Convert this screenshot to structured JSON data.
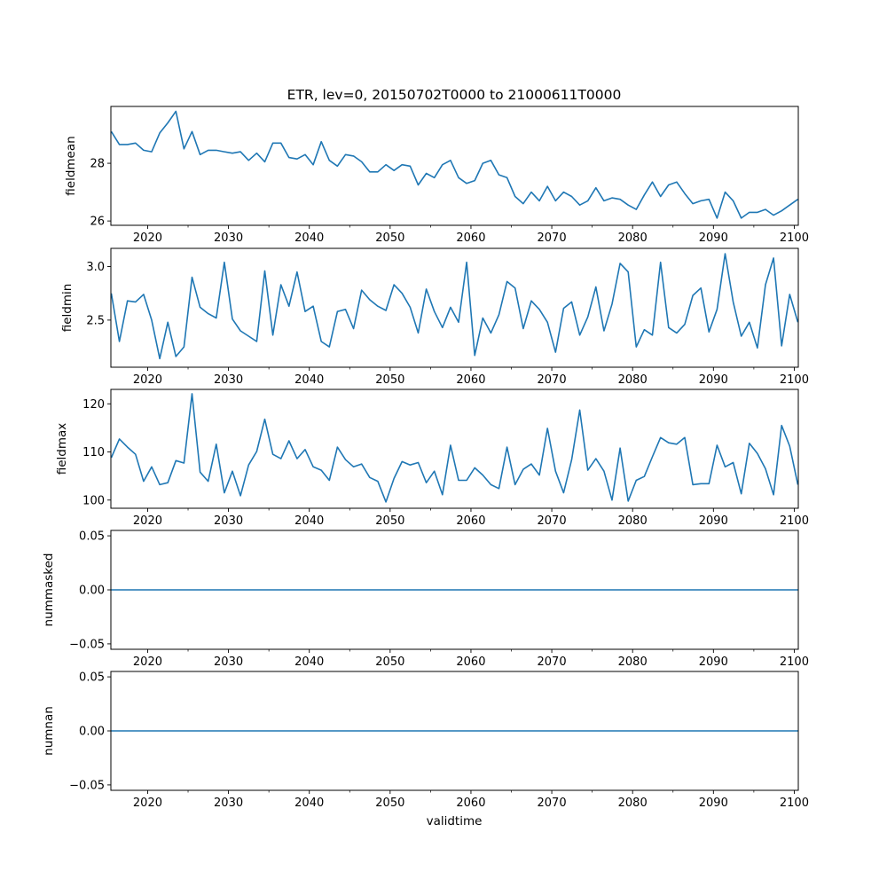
{
  "chart_data": {
    "type": "line",
    "title": "ETR, lev=0, 20150702T0000 to 21000611T0000",
    "xlabel": "validtime",
    "x_start": 2015.5,
    "x_end": 2100.44,
    "xlim": [
      2015.45,
      2100.5
    ],
    "xticks": [
      2020,
      2030,
      2040,
      2050,
      2060,
      2070,
      2080,
      2090,
      2100
    ],
    "xtick_labels": [
      "2020",
      "2030",
      "2040",
      "2050",
      "2060",
      "2070",
      "2080",
      "2090",
      "2100"
    ],
    "xminor": [
      2025,
      2035,
      2045,
      2055,
      2065,
      2075,
      2085,
      2095
    ],
    "line_color": "#1f77b4",
    "grid": false,
    "panels": [
      {
        "ylabel": "fieldmean",
        "ylim": [
          25.85,
          29.97
        ],
        "yticks": [
          26,
          28
        ],
        "ytick_labels": [
          "26",
          "28"
        ],
        "values": [
          29.1,
          28.65,
          28.65,
          28.7,
          28.45,
          28.4,
          29.05,
          29.4,
          29.8,
          28.5,
          29.1,
          28.3,
          28.45,
          28.45,
          28.4,
          28.35,
          28.4,
          28.1,
          28.35,
          28.05,
          28.7,
          28.7,
          28.2,
          28.15,
          28.3,
          27.95,
          28.75,
          28.1,
          27.9,
          28.3,
          28.25,
          28.05,
          27.7,
          27.7,
          27.95,
          27.75,
          27.95,
          27.9,
          27.25,
          27.65,
          27.5,
          27.95,
          28.1,
          27.5,
          27.3,
          27.4,
          28.0,
          28.1,
          27.6,
          27.5,
          26.85,
          26.6,
          27.0,
          26.7,
          27.2,
          26.7,
          27.0,
          26.85,
          26.55,
          26.7,
          27.15,
          26.7,
          26.8,
          26.75,
          26.55,
          26.4,
          26.9,
          27.35,
          26.85,
          27.25,
          27.35,
          26.95,
          26.6,
          26.7,
          26.75,
          26.1,
          27.0,
          26.7,
          26.1,
          26.3,
          26.3,
          26.4,
          26.2,
          26.35,
          26.55,
          26.75
        ]
      },
      {
        "ylabel": "fieldmin",
        "ylim": [
          2.06,
          3.17
        ],
        "yticks": [
          2.5,
          3.0
        ],
        "ytick_labels": [
          "2.5",
          "3.0"
        ],
        "values": [
          2.75,
          2.3,
          2.68,
          2.67,
          2.74,
          2.5,
          2.14,
          2.48,
          2.16,
          2.25,
          2.9,
          2.62,
          2.56,
          2.52,
          3.04,
          2.51,
          2.4,
          2.35,
          2.3,
          2.96,
          2.36,
          2.83,
          2.63,
          2.95,
          2.58,
          2.63,
          2.3,
          2.25,
          2.58,
          2.6,
          2.42,
          2.78,
          2.69,
          2.63,
          2.59,
          2.83,
          2.75,
          2.62,
          2.38,
          2.79,
          2.58,
          2.43,
          2.62,
          2.48,
          3.04,
          2.17,
          2.52,
          2.38,
          2.55,
          2.86,
          2.8,
          2.42,
          2.68,
          2.6,
          2.48,
          2.2,
          2.61,
          2.67,
          2.36,
          2.53,
          2.81,
          2.4,
          2.65,
          3.03,
          2.95,
          2.25,
          2.41,
          2.36,
          3.04,
          2.43,
          2.38,
          2.46,
          2.73,
          2.8,
          2.39,
          2.6,
          3.12,
          2.67,
          2.35,
          2.48,
          2.24,
          2.83,
          3.08,
          2.26,
          2.74,
          2.48
        ]
      },
      {
        "ylabel": "fieldmax",
        "ylim": [
          98.3,
          123.0
        ],
        "yticks": [
          100,
          110,
          120
        ],
        "ytick_labels": [
          "100",
          "110",
          "120"
        ],
        "values": [
          108.8,
          112.7,
          111,
          109.5,
          103.9,
          106.9,
          103.2,
          103.6,
          108.2,
          107.7,
          122.1,
          105.8,
          103.9,
          111.6,
          101.5,
          106,
          100.9,
          107.3,
          110.1,
          116.8,
          109.5,
          108.6,
          112.3,
          108.6,
          110.5,
          106.9,
          106.2,
          104.1,
          111,
          108.4,
          106.9,
          107.5,
          104.7,
          103.9,
          99.6,
          104.5,
          108,
          107.3,
          107.8,
          103.6,
          106,
          101.1,
          111.4,
          104.1,
          104.1,
          106.7,
          105.2,
          103.2,
          102.4,
          111,
          103.2,
          106.4,
          107.5,
          105.2,
          114.9,
          106,
          101.5,
          108.4,
          118.7,
          106.2,
          108.6,
          106,
          100,
          110.8,
          99.8,
          104.1,
          104.9,
          109,
          113,
          111.9,
          111.6,
          113,
          103.2,
          103.4,
          103.4,
          111.4,
          106.9,
          107.8,
          101.3,
          111.8,
          109.7,
          106.5,
          101.1,
          115.5,
          111.2,
          103.2
        ]
      },
      {
        "ylabel": "nummasked",
        "ylim": [
          -0.055,
          0.055
        ],
        "yticks": [
          -0.05,
          0.0,
          0.05
        ],
        "ytick_labels": [
          "−0.05",
          "0.00",
          "0.05"
        ],
        "constant_value": 0
      },
      {
        "ylabel": "numnan",
        "ylim": [
          -0.055,
          0.055
        ],
        "yticks": [
          -0.05,
          0.0,
          0.05
        ],
        "ytick_labels": [
          "−0.05",
          "0.00",
          "0.05"
        ],
        "constant_value": 0
      }
    ]
  }
}
